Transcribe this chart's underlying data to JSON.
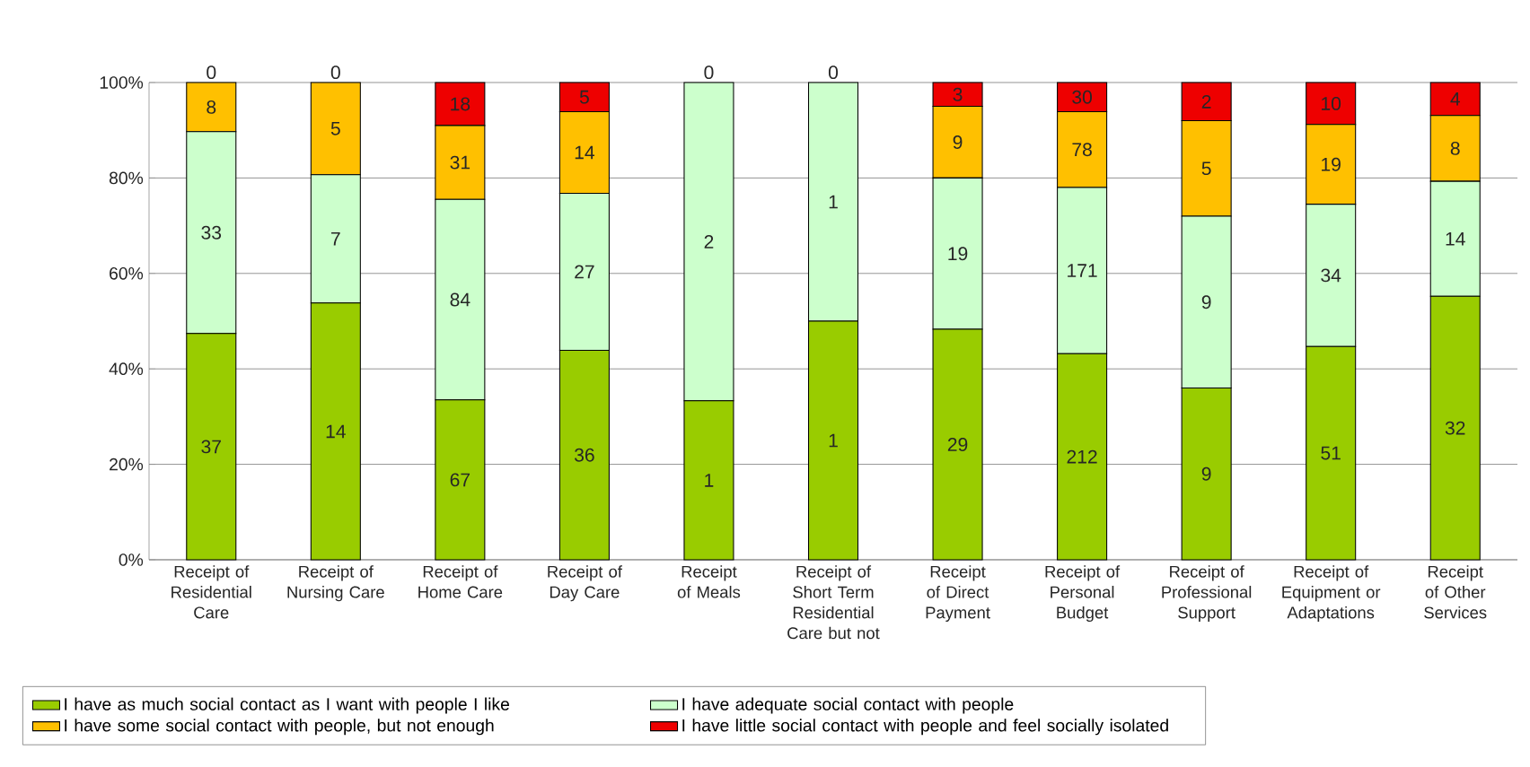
{
  "chart_data": {
    "type": "bar",
    "stacked": true,
    "categories": [
      "Receipt of Residential Care",
      "Receipt of Nursing Care",
      "Receipt of Home Care",
      "Receipt of Day Care",
      "Receipt of Meals",
      "Receipt of Short Term Residential Care but not",
      "Receipt of Direct Payment",
      "Receipt of Personal Budget",
      "Receipt of Professional Support",
      "Receipt of Equipment or Adaptations",
      "Receipt of Other Services"
    ],
    "series": [
      {
        "name": "I have as much social contact as I want with people I like",
        "color": "#99cc00",
        "values": [
          47.4,
          53.8,
          33.5,
          43.9,
          33.3,
          50,
          48.3,
          43.2,
          36,
          44.7,
          55.2
        ]
      },
      {
        "name": "I have adequate social contact with people",
        "color": "#ccffcc",
        "values": [
          42.3,
          26.9,
          42.0,
          32.9,
          66.7,
          50,
          31.7,
          34.8,
          36,
          29.8,
          24.1
        ]
      },
      {
        "name": "I have some social contact with people, but not enough",
        "color": "#ffc000",
        "values": [
          10.3,
          19.3,
          15.5,
          17.1,
          0,
          0,
          15.0,
          15.9,
          20,
          16.7,
          13.8
        ]
      },
      {
        "name": "I have little social contact with people and feel socially isolated",
        "color": "#ee0000",
        "values": [
          0,
          0,
          9.0,
          6.1,
          0,
          0,
          5.0,
          6.1,
          8,
          8.8,
          6.9
        ]
      }
    ],
    "annotations": [
      "37",
      "33",
      "8",
      "0",
      "14",
      "7",
      "5",
      "0",
      "67",
      "84",
      "31",
      "18",
      "36",
      "27",
      "14",
      "5",
      "1",
      "2",
      "0",
      "1",
      "1",
      "0",
      "29",
      "19",
      "9",
      "3",
      "212",
      "171",
      "78",
      "30",
      "9",
      "9",
      "5",
      "2",
      "51",
      "34",
      "19",
      "10",
      "32",
      "14",
      "8",
      "4"
    ],
    "ylim": [
      0,
      100
    ],
    "yticks": [
      {
        "value": 0,
        "label": "0%"
      },
      {
        "value": 20,
        "label": "20%"
      },
      {
        "value": 40,
        "label": "40%"
      },
      {
        "value": 60,
        "label": "60%"
      },
      {
        "value": 80,
        "label": "80%"
      },
      {
        "value": 100,
        "label": "100%"
      }
    ],
    "grid": "y",
    "legend": "bottom"
  }
}
